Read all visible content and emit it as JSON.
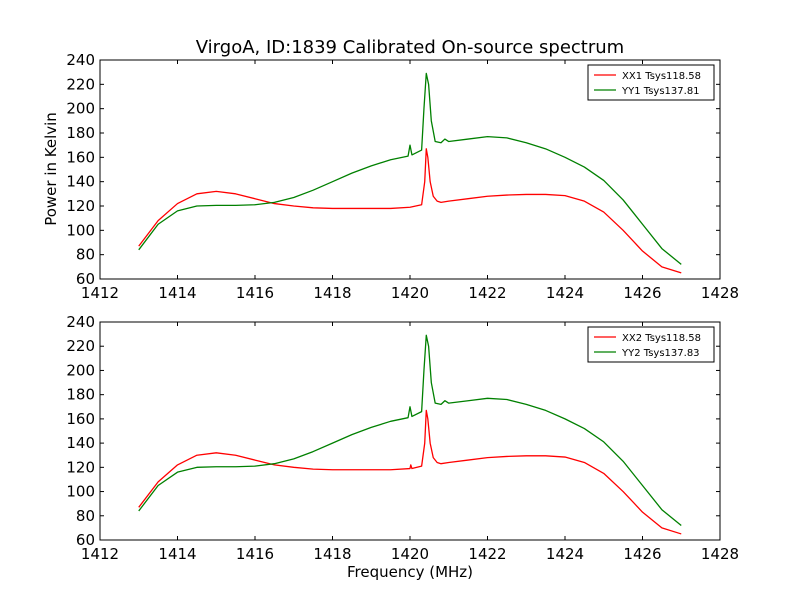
{
  "chart_data": [
    {
      "type": "line",
      "title": "VirgoA, ID:1839 Calibrated On-source spectrum",
      "xlabel": "",
      "ylabel": "Power in Kelvin",
      "xlim": [
        1412,
        1428
      ],
      "ylim": [
        60,
        240
      ],
      "xticks": [
        1412,
        1414,
        1416,
        1418,
        1420,
        1422,
        1424,
        1426,
        1428
      ],
      "yticks": [
        60,
        80,
        100,
        120,
        140,
        160,
        180,
        200,
        220,
        240
      ],
      "grid": false,
      "legend_position": "top-right",
      "series": [
        {
          "name": "XX1 Tsys118.58",
          "color": "#ff0000",
          "x": [
            1413.0,
            1413.5,
            1414.0,
            1414.5,
            1415.0,
            1415.5,
            1416.0,
            1416.5,
            1417.0,
            1417.5,
            1418.0,
            1418.5,
            1419.0,
            1419.5,
            1420.0,
            1420.3,
            1420.38,
            1420.42,
            1420.46,
            1420.52,
            1420.6,
            1420.7,
            1420.8,
            1421.0,
            1421.5,
            1422.0,
            1422.5,
            1423.0,
            1423.5,
            1424.0,
            1424.5,
            1425.0,
            1425.5,
            1426.0,
            1426.5,
            1427.0
          ],
          "y": [
            87,
            108,
            122,
            130,
            132,
            130,
            126,
            122,
            120,
            118.5,
            118,
            118,
            118,
            118,
            119,
            121,
            140,
            167,
            160,
            140,
            128,
            124,
            123,
            124,
            126,
            128,
            129,
            129.5,
            129.5,
            128.5,
            124,
            115,
            100,
            83,
            70,
            65
          ]
        },
        {
          "name": "YY1 Tsys137.81",
          "color": "#008000",
          "x": [
            1413.0,
            1413.5,
            1414.0,
            1414.5,
            1415.0,
            1415.5,
            1416.0,
            1416.5,
            1417.0,
            1417.5,
            1418.0,
            1418.5,
            1419.0,
            1419.5,
            1419.95,
            1420.0,
            1420.05,
            1420.3,
            1420.36,
            1420.42,
            1420.48,
            1420.55,
            1420.65,
            1420.8,
            1420.9,
            1421.0,
            1421.5,
            1422.0,
            1422.5,
            1423.0,
            1423.5,
            1424.0,
            1424.5,
            1425.0,
            1425.5,
            1426.0,
            1426.5,
            1427.0
          ],
          "y": [
            84,
            105,
            116,
            120,
            120.5,
            120.5,
            121,
            123,
            127,
            133,
            140,
            147,
            153,
            158,
            161,
            170,
            162,
            166,
            200,
            229,
            220,
            190,
            173,
            172,
            175,
            173,
            175,
            177,
            176,
            172,
            167,
            160,
            152,
            141,
            125,
            105,
            85,
            72
          ]
        }
      ]
    },
    {
      "type": "line",
      "title": "",
      "xlabel": "Frequency (MHz)",
      "ylabel": "",
      "xlim": [
        1412,
        1428
      ],
      "ylim": [
        60,
        240
      ],
      "xticks": [
        1412,
        1414,
        1416,
        1418,
        1420,
        1422,
        1424,
        1426,
        1428
      ],
      "yticks": [
        60,
        80,
        100,
        120,
        140,
        160,
        180,
        200,
        220,
        240
      ],
      "grid": false,
      "legend_position": "top-right",
      "series": [
        {
          "name": "XX2 Tsys118.58",
          "color": "#ff0000",
          "x": [
            1413.0,
            1413.5,
            1414.0,
            1414.5,
            1415.0,
            1415.5,
            1416.0,
            1416.5,
            1417.0,
            1417.5,
            1418.0,
            1418.5,
            1419.0,
            1419.5,
            1420.0,
            1420.02,
            1420.05,
            1420.3,
            1420.38,
            1420.42,
            1420.46,
            1420.52,
            1420.6,
            1420.7,
            1420.8,
            1421.0,
            1421.5,
            1422.0,
            1422.5,
            1423.0,
            1423.5,
            1424.0,
            1424.5,
            1425.0,
            1425.5,
            1426.0,
            1426.5,
            1427.0
          ],
          "y": [
            87,
            108,
            122,
            130,
            132,
            130,
            126,
            122,
            120,
            118.5,
            118,
            118,
            118,
            118,
            119,
            122,
            119,
            121,
            140,
            167,
            160,
            140,
            128,
            124,
            123,
            124,
            126,
            128,
            129,
            129.5,
            129.5,
            128.5,
            124,
            115,
            100,
            83,
            70,
            65
          ]
        },
        {
          "name": "YY2 Tsys137.83",
          "color": "#008000",
          "x": [
            1413.0,
            1413.5,
            1414.0,
            1414.5,
            1415.0,
            1415.5,
            1416.0,
            1416.5,
            1417.0,
            1417.5,
            1418.0,
            1418.5,
            1419.0,
            1419.5,
            1419.95,
            1420.0,
            1420.05,
            1420.3,
            1420.36,
            1420.42,
            1420.48,
            1420.55,
            1420.65,
            1420.8,
            1420.9,
            1421.0,
            1421.5,
            1422.0,
            1422.5,
            1423.0,
            1423.5,
            1424.0,
            1424.5,
            1425.0,
            1425.5,
            1426.0,
            1426.5,
            1427.0
          ],
          "y": [
            84,
            105,
            116,
            120,
            120.5,
            120.5,
            121,
            123,
            127,
            133,
            140,
            147,
            153,
            158,
            161,
            170,
            162,
            166,
            200,
            229,
            220,
            190,
            173,
            172,
            175,
            173,
            175,
            177,
            176,
            172,
            167,
            160,
            152,
            141,
            125,
            105,
            85,
            72
          ]
        }
      ]
    }
  ]
}
